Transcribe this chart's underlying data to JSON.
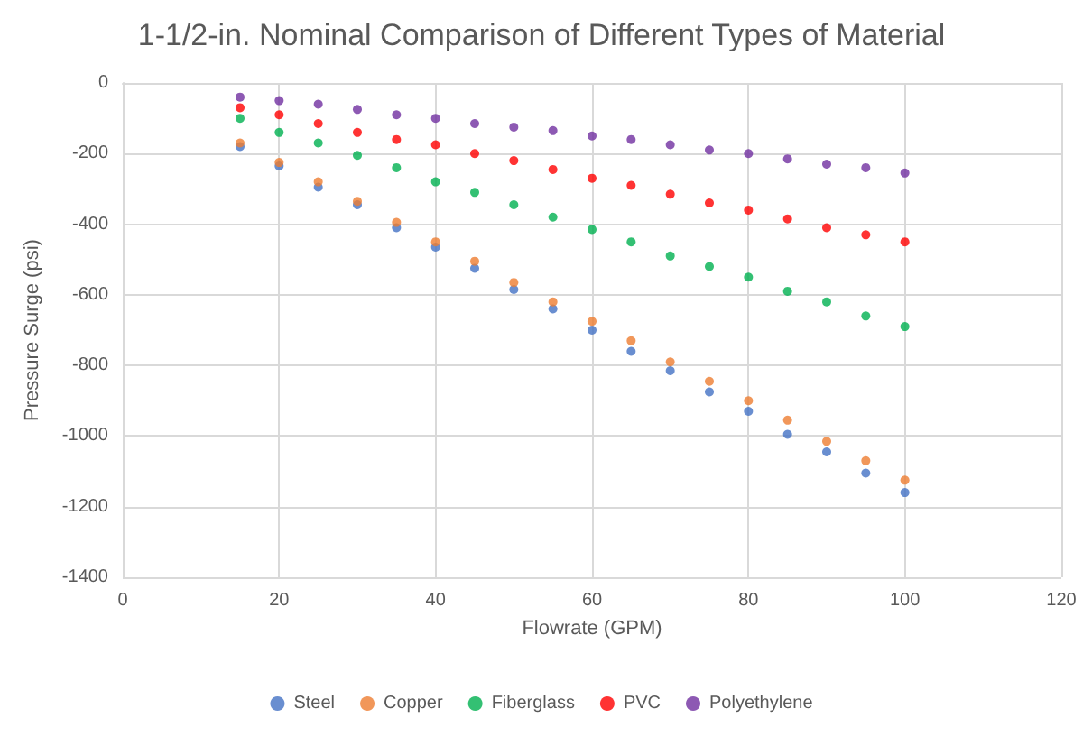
{
  "chart_data": {
    "type": "scatter",
    "title": "1-1/2-in. Nominal Comparison of Different Types of Material",
    "xlabel": "Flowrate (GPM)",
    "ylabel": "Pressure Surge (psi)",
    "x": [
      15,
      20,
      25,
      30,
      35,
      40,
      45,
      50,
      55,
      60,
      65,
      70,
      75,
      80,
      85,
      90,
      95,
      100
    ],
    "series": [
      {
        "name": "Steel",
        "color": "#4472c4",
        "values": [
          -180,
          -235,
          -295,
          -345,
          -410,
          -465,
          -525,
          -585,
          -640,
          -700,
          -760,
          -815,
          -875,
          -930,
          -995,
          -1045,
          -1105,
          -1160
        ]
      },
      {
        "name": "Copper",
        "color": "#ed7d31",
        "values": [
          -170,
          -225,
          -280,
          -335,
          -395,
          -450,
          -505,
          -565,
          -620,
          -675,
          -730,
          -790,
          -845,
          -900,
          -955,
          -1015,
          -1070,
          -1125
        ]
      },
      {
        "name": "Fiberglass",
        "color": "#00b050",
        "values": [
          -100,
          -140,
          -170,
          -205,
          -240,
          -280,
          -310,
          -345,
          -380,
          -415,
          -450,
          -490,
          -520,
          -550,
          -590,
          -620,
          -660,
          -690
        ]
      },
      {
        "name": "PVC",
        "color": "#ff0000",
        "values": [
          -70,
          -90,
          -115,
          -140,
          -160,
          -175,
          -200,
          -220,
          -245,
          -270,
          -290,
          -315,
          -340,
          -360,
          -385,
          -410,
          -430,
          -450
        ]
      },
      {
        "name": "Polyethylene",
        "color": "#7030a0",
        "values": [
          -40,
          -50,
          -60,
          -75,
          -90,
          -100,
          -115,
          -125,
          -135,
          -150,
          -160,
          -175,
          -190,
          -200,
          -215,
          -230,
          -240,
          -255
        ]
      }
    ],
    "xlim": [
      0,
      120
    ],
    "xticks": [
      0,
      20,
      40,
      60,
      80,
      100,
      120
    ],
    "ylim": [
      -1400,
      0
    ],
    "yticks": [
      -1400,
      -1200,
      -1000,
      -800,
      -600,
      -400,
      -200,
      0
    ],
    "grid": true,
    "legend": "bottom",
    "marker": "circle"
  }
}
